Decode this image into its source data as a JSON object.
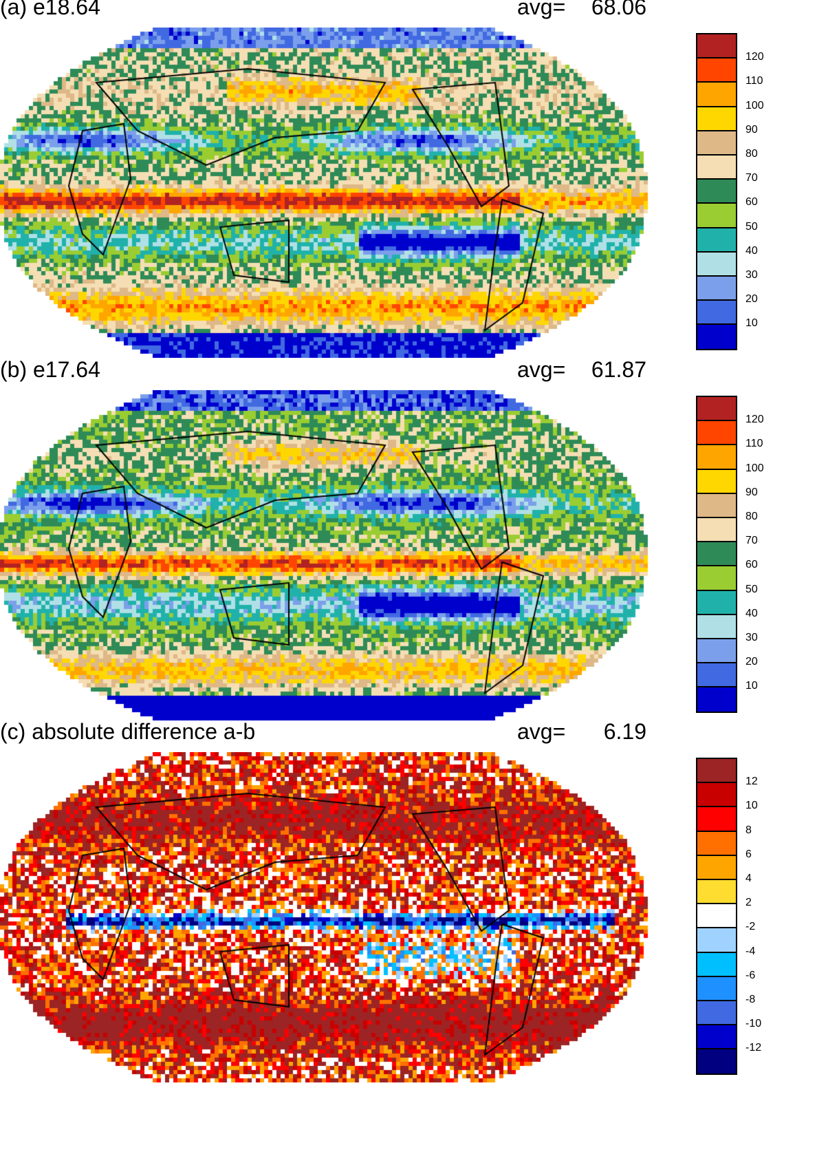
{
  "chart_data": [
    {
      "type": "heatmap",
      "title": "(a) e18.64",
      "avg_label": "avg=",
      "avg": "68.06",
      "colorbar": {
        "levels": [
          "120",
          "110",
          "100",
          "90",
          "80",
          "70",
          "60",
          "50",
          "40",
          "30",
          "20",
          "10"
        ],
        "colors": [
          "#B22222",
          "#FF4500",
          "#FFA500",
          "#FFD700",
          "#DEB887",
          "#F5DEB3",
          "#2E8B57",
          "#9ACD32",
          "#20B2AA",
          "#B0E0E6",
          "#7B9FEB",
          "#4169E1",
          "#0000CD"
        ]
      }
    },
    {
      "type": "heatmap",
      "title": "(b) e17.64",
      "avg_label": "avg=",
      "avg": "61.87",
      "colorbar": {
        "levels": [
          "120",
          "110",
          "100",
          "90",
          "80",
          "70",
          "60",
          "50",
          "40",
          "30",
          "20",
          "10"
        ],
        "colors": [
          "#B22222",
          "#FF4500",
          "#FFA500",
          "#FFD700",
          "#DEB887",
          "#F5DEB3",
          "#2E8B57",
          "#9ACD32",
          "#20B2AA",
          "#B0E0E6",
          "#7B9FEB",
          "#4169E1",
          "#0000CD"
        ]
      }
    },
    {
      "type": "heatmap",
      "title": "(c) absolute difference a-b",
      "avg_label": "avg=",
      "avg": "6.19",
      "colorbar": {
        "levels": [
          "12",
          "10",
          "8",
          "6",
          "4",
          "2",
          "-2",
          "-4",
          "-6",
          "-8",
          "-10",
          "-12"
        ],
        "colors": [
          "#9C2424",
          "#C80000",
          "#FF0000",
          "#FF7000",
          "#FFA500",
          "#FFDD30",
          "#FFFFFF",
          "#A0D2FF",
          "#00BFFF",
          "#1E90FF",
          "#4169E1",
          "#0000CD",
          "#000080"
        ]
      }
    }
  ]
}
